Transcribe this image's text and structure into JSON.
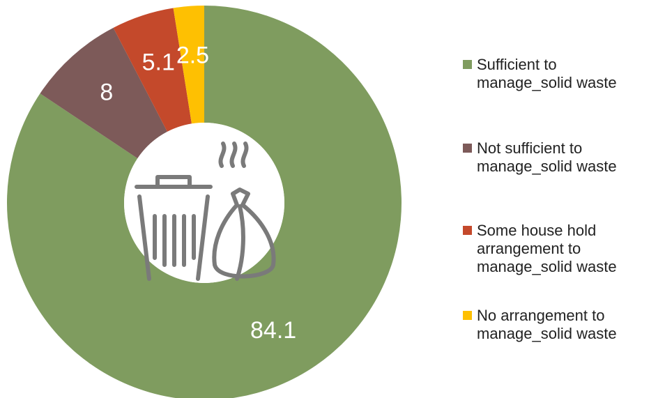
{
  "chart_data": {
    "type": "donut",
    "categories": [
      "Sufficient to manage_solid waste",
      "Not sufficient to manage_solid waste",
      "Some house hold arrangement to manage_solid waste",
      "No arrangement to manage_solid waste"
    ],
    "values": [
      84.1,
      8,
      5.1,
      2.5
    ],
    "colors": [
      "#7f9c5f",
      "#7d5a59",
      "#c4492b",
      "#fec002"
    ],
    "legend": "right"
  }
}
